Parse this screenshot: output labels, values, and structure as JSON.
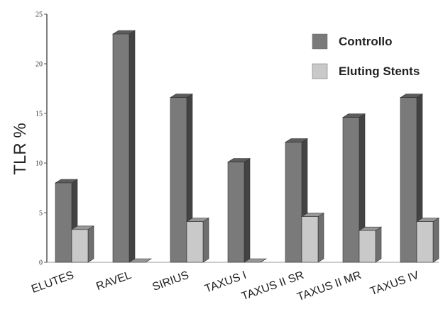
{
  "chart_data": {
    "type": "bar",
    "title": "",
    "xlabel": "",
    "ylabel": "TLR %",
    "ylim": [
      0,
      25
    ],
    "yticks": [
      0,
      5,
      10,
      15,
      20,
      25
    ],
    "grid": false,
    "legend_position": "top-right",
    "categories": [
      "ELUTES",
      "RAVEL",
      "SIRIUS",
      "TAXUS I",
      "TAXUS II SR",
      "TAXUS II MR",
      "TAXUS IV"
    ],
    "series": [
      {
        "name": "Controllo",
        "color": "#7a7a7a",
        "values": [
          8,
          23,
          16.6,
          10.1,
          12.1,
          14.6,
          16.6
        ]
      },
      {
        "name": "Eluting Stents",
        "color": "#c9c9c9",
        "values": [
          3.3,
          0,
          4.1,
          0,
          4.6,
          3.2,
          4.1
        ]
      }
    ]
  }
}
